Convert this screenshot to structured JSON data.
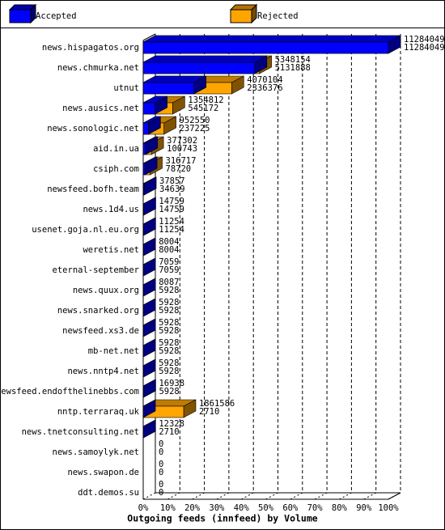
{
  "chart_data": {
    "type": "bar3d_horizontal",
    "title": "Outgoing feeds (innfeed) by Volume",
    "categories": [
      "news.hispagatos.org",
      "news.chmurka.net",
      "utnut",
      "news.ausics.net",
      "news.sonologic.net",
      "aid.in.ua",
      "csiph.com",
      "newsfeed.bofh.team",
      "news.1d4.us",
      "usenet.goja.nl.eu.org",
      "weretis.net",
      "eternal-september",
      "news.quux.org",
      "news.snarked.org",
      "newsfeed.xs3.de",
      "mb-net.net",
      "news.nntp4.net",
      "newsfeed.endofthelinebbs.com",
      "nntp.terraraq.uk",
      "news.tnetconsulting.net",
      "news.samoylyk.net",
      "news.swapon.de",
      "ddt.demos.su"
    ],
    "series": [
      {
        "name": "Rejected",
        "color": "#ffa500",
        "values": [
          11284049,
          5348154,
          4070104,
          1354812,
          952550,
          377302,
          316717,
          37857,
          14759,
          11254,
          8004,
          7059,
          8087,
          5928,
          5928,
          5928,
          5928,
          16938,
          1861586,
          12328,
          0,
          0,
          0
        ]
      },
      {
        "name": "Accepted",
        "color": "#0000ff",
        "values": [
          11284049,
          5131888,
          2336376,
          545172,
          237225,
          100743,
          78720,
          34639,
          14759,
          11254,
          8004,
          7059,
          5928,
          5928,
          5928,
          5928,
          5928,
          5928,
          2710,
          2710,
          0,
          0,
          0
        ]
      }
    ],
    "legend_order": [
      1,
      0
    ],
    "xlim": [
      0,
      11284049
    ],
    "xticks": [
      {
        "value": 0,
        "label": "0%"
      },
      {
        "value": 1128404.9,
        "label": "10%"
      },
      {
        "value": 2256809.8,
        "label": "20%"
      },
      {
        "value": 3385214.7,
        "label": "30%"
      },
      {
        "value": 4513619.6,
        "label": "40%"
      },
      {
        "value": 5642024.5,
        "label": "50%"
      },
      {
        "value": 6770429.4,
        "label": "60%"
      },
      {
        "value": 7898834.3,
        "label": "70%"
      },
      {
        "value": 9027239.2,
        "label": "80%"
      },
      {
        "value": 10155644.1,
        "label": "90%"
      },
      {
        "value": 11284049,
        "label": "100%"
      }
    ],
    "grid": true
  }
}
